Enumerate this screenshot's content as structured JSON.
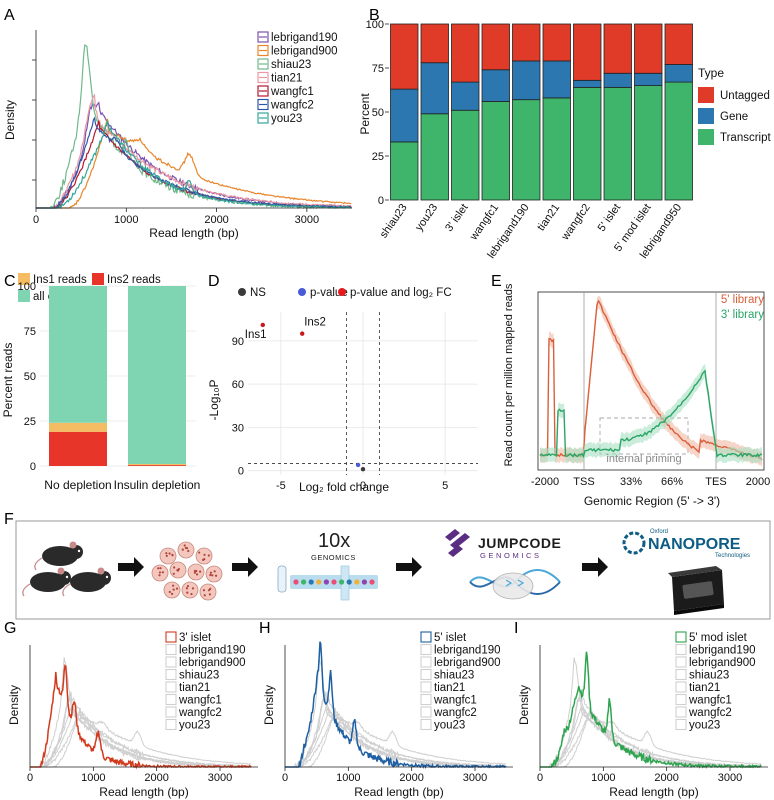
{
  "panels": {
    "A": {
      "label": "A",
      "chart_data": {
        "type": "line",
        "xlabel": "Read length (bp)",
        "ylabel": "Density",
        "xlim": [
          0,
          3500
        ],
        "xticks": [
          "0",
          "1000",
          "2000",
          "3000"
        ],
        "series": [
          {
            "name": "lebrigand190",
            "color": "#7b52ae"
          },
          {
            "name": "lebrigand900",
            "color": "#e8862c"
          },
          {
            "name": "shiau23",
            "color": "#6fb88a"
          },
          {
            "name": "tian21",
            "color": "#e89aa4"
          },
          {
            "name": "wangfc1",
            "color": "#b5182e"
          },
          {
            "name": "wangfc2",
            "color": "#2e58a6"
          },
          {
            "name": "you23",
            "color": "#33a69a"
          }
        ]
      }
    },
    "B": {
      "label": "B",
      "chart_data": {
        "type": "bar",
        "stacked": true,
        "ylabel": "Percent",
        "ylim": [
          0,
          100
        ],
        "yticks": [
          "0",
          "25",
          "50",
          "75",
          "100"
        ],
        "categories": [
          "shiau23",
          "you23",
          "3' islet",
          "wangfc1",
          "lebrigand190",
          "tian21",
          "wangfc2",
          "5' islet",
          "5' mod islet",
          "lebrigand950"
        ],
        "legend_title": "Type",
        "series": [
          {
            "name": "Transcript",
            "color": "#3fb56b",
            "values": [
              33,
              49,
              51,
              56,
              57,
              58,
              64,
              64,
              65,
              67
            ]
          },
          {
            "name": "Gene",
            "color": "#2c77b0",
            "values": [
              30,
              29,
              16,
              18,
              22,
              21,
              4,
              8,
              7,
              10
            ]
          },
          {
            "name": "Untagged",
            "color": "#e03b28",
            "values": [
              37,
              22,
              33,
              26,
              21,
              21,
              32,
              28,
              28,
              23
            ]
          }
        ]
      }
    },
    "C": {
      "label": "C",
      "chart_data": {
        "type": "bar",
        "stacked": true,
        "ylabel": "Percent reads",
        "ylim": [
          0,
          100
        ],
        "yticks": [
          "0",
          "25",
          "50",
          "75",
          "100"
        ],
        "categories": [
          "No depletion",
          "Insulin depletion"
        ],
        "series": [
          {
            "name": "Ins2 reads",
            "color": "#e8352a",
            "values": [
              19,
              0.5
            ]
          },
          {
            "name": "Ins1 reads",
            "color": "#f4bd63",
            "values": [
              5,
              0.6
            ]
          },
          {
            "name": "all other reads",
            "color": "#7fd4b2",
            "values": [
              76,
              98.9
            ]
          }
        ]
      }
    },
    "D": {
      "label": "D",
      "chart_data": {
        "type": "scatter",
        "xlabel": "Log₂ fold change",
        "ylabel": "-Log₁₀P",
        "xlim": [
          -7,
          7
        ],
        "ylim": [
          -3,
          110
        ],
        "xticks": [
          "-5",
          "0",
          "5"
        ],
        "yticks": [
          "0",
          "30",
          "60",
          "90"
        ],
        "legend": [
          "NS",
          "p-value",
          "p-value and log₂ FC"
        ],
        "legend_colors": [
          "#3a3a3a",
          "#4a5bd6",
          "#e41a1c"
        ],
        "annotations": [
          "Ins1",
          "Ins2"
        ],
        "points": [
          {
            "x": -6.1,
            "y": 101,
            "label": "Ins1"
          },
          {
            "x": -3.7,
            "y": 95,
            "label": "Ins2"
          },
          {
            "x": -0.3,
            "y": 4
          },
          {
            "x": 0.0,
            "y": 1
          }
        ]
      }
    },
    "E": {
      "label": "E",
      "chart_data": {
        "type": "line",
        "xlabel": "Genomic Region (5' -> 3')",
        "ylabel": "Read count per million mapped reads",
        "xticks": [
          "-2000",
          "TSS",
          "33%",
          "66%",
          "TES",
          "2000"
        ],
        "annotation": "internal priming",
        "series": [
          {
            "name": "5' library",
            "color": "#d9603b"
          },
          {
            "name": "3' library",
            "color": "#2aa566"
          }
        ]
      }
    },
    "F": {
      "label": "F",
      "tenx_logo": "10x",
      "tenx_text": "GENOMICS",
      "jumpcode_line1": "JUMPCODE",
      "jumpcode_line2": "GENOMICS",
      "nanopore_small_top": "Oxford",
      "nanopore_main": "NANOPORE",
      "nanopore_small_bottom": "Technologies"
    },
    "G": {
      "label": "G",
      "chart_data": {
        "type": "line",
        "xlabel": "Read length (bp)",
        "ylabel": "Density",
        "xticks": [
          "0",
          "1000",
          "2000",
          "3000"
        ],
        "highlight": {
          "name": "3' islet",
          "color": "#d23a1e"
        },
        "others": [
          "lebrigand190",
          "lebrigand900",
          "shiau23",
          "tian21",
          "wangfc1",
          "wangfc2",
          "you23"
        ]
      }
    },
    "H": {
      "label": "H",
      "chart_data": {
        "type": "line",
        "xlabel": "Read length (bp)",
        "ylabel": "Density",
        "xticks": [
          "0",
          "1000",
          "2000",
          "3000"
        ],
        "highlight": {
          "name": "5' islet",
          "color": "#1f5fa3"
        },
        "others": [
          "lebrigand190",
          "lebrigand900",
          "shiau23",
          "tian21",
          "wangfc1",
          "wangfc2",
          "you23"
        ]
      }
    },
    "I": {
      "label": "I",
      "chart_data": {
        "type": "line",
        "xlabel": "Read length (bp)",
        "ylabel": "Density",
        "xticks": [
          "0",
          "1000",
          "2000",
          "3000"
        ],
        "highlight": {
          "name": "5' mod islet",
          "color": "#2ea44f"
        },
        "others": [
          "lebrigand190",
          "lebrigand900",
          "shiau23",
          "tian21",
          "wangfc1",
          "wangfc2",
          "you23"
        ]
      }
    }
  }
}
